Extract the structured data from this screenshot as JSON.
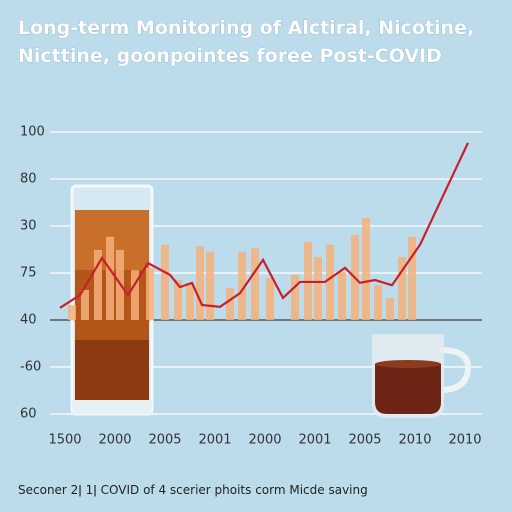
{
  "chart_data": {
    "type": "combo",
    "title": [
      "Long-term Monitoring of Alctiral, Nicotine,",
      "Nicttine, goonpointes foree Post-COVID"
    ],
    "caption": "Seconer 2ǀ 1ǀ COVID of 4 scerier phoits corm Micde saving",
    "categories": [
      "1500",
      "2000",
      "2005",
      "2001",
      "2000",
      "2001",
      "2005",
      "2010",
      "2010"
    ],
    "ylim": [
      0,
      6
    ],
    "yticks": [
      {
        "value": 6,
        "label": "100"
      },
      {
        "value": 5,
        "label": "80"
      },
      {
        "value": 4,
        "label": "30"
      },
      {
        "value": 3,
        "label": "75"
      },
      {
        "value": 2,
        "label": "40"
      },
      {
        "value": 1,
        "label": "-60"
      },
      {
        "value": 0,
        "label": "60"
      }
    ],
    "grid": true,
    "series": [
      {
        "type": "bar",
        "color": "#f4b07a",
        "x": [
          0.14,
          0.4,
          0.66,
          0.9,
          1.1,
          1.4,
          1.7,
          2,
          2.26,
          2.5,
          2.7,
          2.9,
          3.3,
          3.54,
          3.8,
          4.1,
          4.6,
          4.86,
          5.06,
          5.3,
          5.54,
          5.8,
          6.02,
          6.26,
          6.5,
          6.74,
          6.94
        ],
        "values": [
          2.32,
          2.64,
          3.49,
          3.77,
          3.49,
          3.06,
          3.11,
          3.6,
          2.85,
          2.79,
          3.57,
          3.45,
          2.68,
          3.45,
          3.53,
          2.89,
          2.96,
          3.66,
          3.34,
          3.6,
          3.02,
          3.81,
          4.17,
          2.74,
          2.47,
          3.34,
          3.77
        ]
      },
      {
        "type": "line",
        "color": "#c8202a",
        "x": [
          -0.1,
          0.3,
          0.74,
          1.26,
          1.66,
          2.1,
          2.3,
          2.54,
          2.74,
          3.1,
          3.5,
          3.96,
          4.36,
          4.7,
          5.2,
          5.6,
          5.9,
          6.2,
          6.54,
          7.1,
          8.06
        ],
        "values": [
          2.26,
          2.53,
          3.32,
          2.53,
          3.21,
          2.96,
          2.7,
          2.79,
          2.32,
          2.28,
          2.57,
          3.28,
          2.47,
          2.81,
          2.81,
          3.11,
          2.79,
          2.85,
          2.74,
          3.6,
          5.77
        ]
      }
    ]
  }
}
